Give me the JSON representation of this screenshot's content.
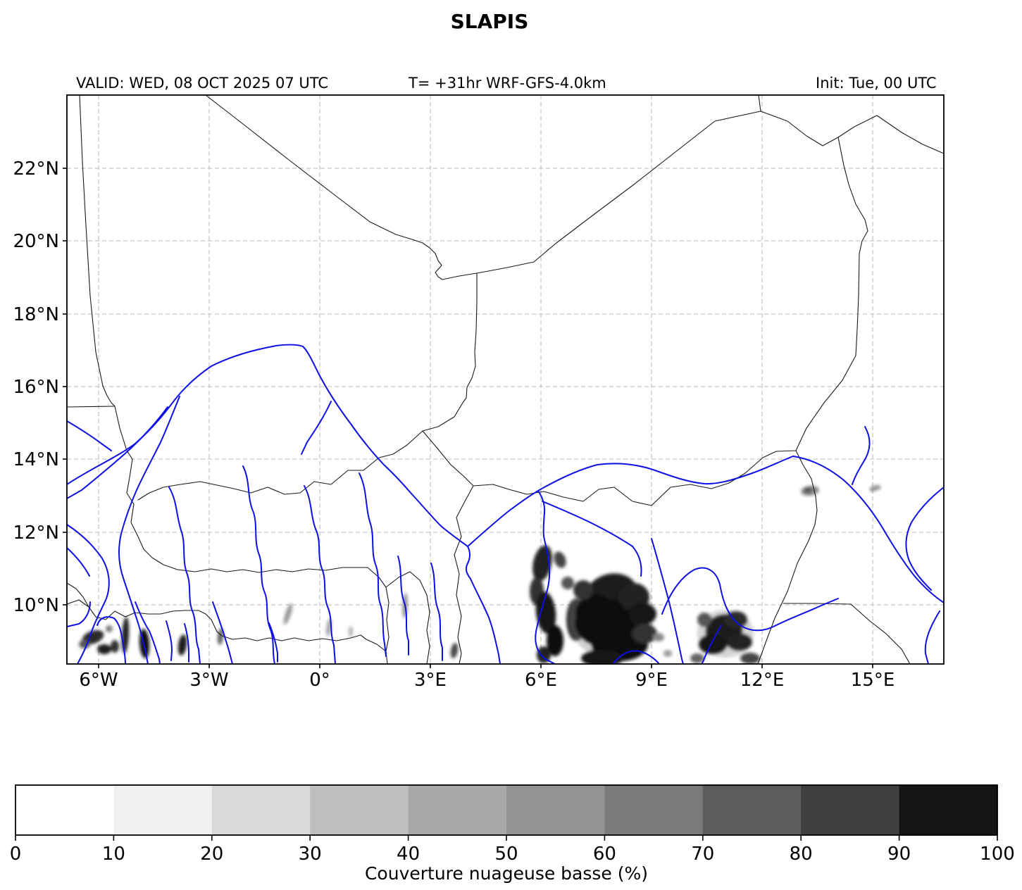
{
  "title": "SLAPIS",
  "header": {
    "valid": "VALID: WED, 08 OCT 2025 07 UTC",
    "model": "T= +31hr WRF-GFS-4.0km",
    "init": "Init: Tue, 00 UTC"
  },
  "map": {
    "x_ticks": [
      "6°W",
      "3°W",
      "0°",
      "3°E",
      "6°E",
      "9°E",
      "12°E",
      "15°E"
    ],
    "y_ticks": [
      "22°N",
      "20°N",
      "18°N",
      "16°N",
      "14°N",
      "12°N",
      "10°N"
    ]
  },
  "colorbar": {
    "label": "Couverture nuageuse basse (%)",
    "tick_labels": [
      "0",
      "10",
      "20",
      "30",
      "40",
      "50",
      "60",
      "70",
      "80",
      "90",
      "100"
    ],
    "colors": [
      "#ffffff",
      "#f0f0f0",
      "#d9d9d9",
      "#bfbfbf",
      "#a9a9a9",
      "#939393",
      "#7a7a7a",
      "#5c5c5c",
      "#3f3f3f",
      "#141414"
    ]
  },
  "chart_data": {
    "type": "heatmap",
    "title": "SLAPIS",
    "annotations": [
      "VALID: WED, 08 OCT 2025 07 UTC",
      "T= +31hr WRF-GFS-4.0km",
      "Init: Tue, 00 UTC"
    ],
    "xlabel": "",
    "ylabel": "",
    "x_tick_labels": [
      "6°W",
      "3°W",
      "0°",
      "3°E",
      "6°E",
      "9°E",
      "12°E",
      "15°E"
    ],
    "y_tick_labels": [
      "22°N",
      "20°N",
      "18°N",
      "16°N",
      "14°N",
      "12°N",
      "10°N"
    ],
    "lon_range": [
      -6.9,
      16.9
    ],
    "lat_range": [
      8.4,
      24.0
    ],
    "grid": true,
    "colorbar_label": "Couverture nuageuse basse (%)",
    "colorbar_levels": [
      0,
      10,
      20,
      30,
      40,
      50,
      60,
      70,
      80,
      90,
      100
    ],
    "colorbar_orientation": "horizontal",
    "field": "low cloud cover percentage; white (0-10%) over most of the domain",
    "regions": [
      {
        "lon": 7.9,
        "lat": 9.6,
        "coverage_pct": 95,
        "note": "largest dark cloud mass, central-south Nigeria"
      },
      {
        "lon": 6.1,
        "lat": 10.1,
        "coverage_pct": 85,
        "note": "elongated N-S band west of main mass"
      },
      {
        "lon": 11.0,
        "lat": 9.2,
        "coverage_pct": 85,
        "note": "second dark cluster, eastern Nigeria"
      },
      {
        "lon": -6.0,
        "lat": 9.1,
        "coverage_pct": 75,
        "note": "cluster of small dark cells, southwest corner"
      },
      {
        "lon": -4.8,
        "lat": 9.0,
        "coverage_pct": 70,
        "note": "small dark streaks"
      },
      {
        "lon": 13.3,
        "lat": 13.2,
        "coverage_pct": 40,
        "note": "small grey patch near Lake Chad"
      },
      {
        "lon": 15.1,
        "lat": 13.2,
        "coverage_pct": 30,
        "note": "tiny grey smudge"
      },
      {
        "lon": 0.3,
        "lat": 9.8,
        "coverage_pct": 20,
        "note": "faint grey streaks between 1°W and 2.5°E"
      },
      {
        "lon": 3.7,
        "lat": 8.7,
        "coverage_pct": 50,
        "note": "small dark spot"
      }
    ]
  }
}
